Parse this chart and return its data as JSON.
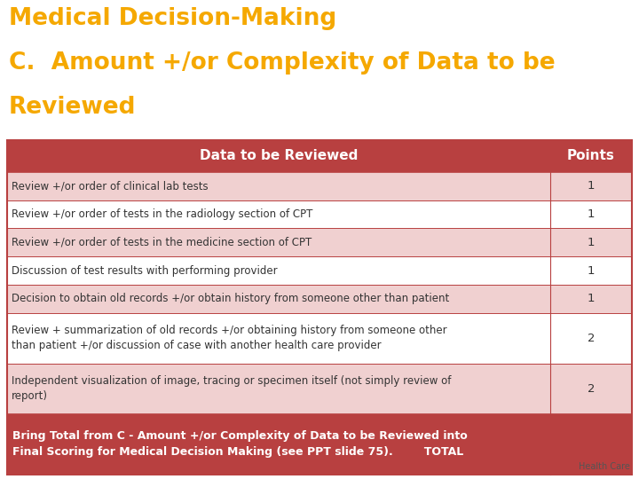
{
  "title_line1": "Medical Decision-Making",
  "title_line2": "C.  Amount +/or Complexity of Data to be",
  "title_line3": "Reviewed",
  "title_color": "#F5A800",
  "bg_color": "#FFFFFF",
  "header_bg": "#B84040",
  "header_text_color": "#FFFFFF",
  "header_col1": "Data to be Reviewed",
  "header_col2": "Points",
  "row_alt1": "#F0D0D0",
  "row_alt2": "#FFFFFF",
  "footer_bg": "#B84040",
  "footer_text_color": "#FFFFFF",
  "border_color": "#B84040",
  "rows": [
    {
      "text": "Review +/or order of clinical lab tests",
      "points": "1",
      "shade": "light"
    },
    {
      "text": "Review +/or order of tests in the radiology section of CPT",
      "points": "1",
      "shade": "white"
    },
    {
      "text": "Review +/or order of tests in the medicine section of CPT",
      "points": "1",
      "shade": "light"
    },
    {
      "text": "Discussion of test results with performing provider",
      "points": "1",
      "shade": "white"
    },
    {
      "text": "Decision to obtain old records +/or obtain history from someone other than patient",
      "points": "1",
      "shade": "light"
    },
    {
      "text": "Review + summarization of old records +/or obtaining history from someone other\nthan patient +/or discussion of case with another health care provider",
      "points": "2",
      "shade": "white"
    },
    {
      "text": "Independent visualization of image, tracing or specimen itself (not simply review of\nreport)",
      "points": "2",
      "shade": "light"
    }
  ],
  "footer_text": "Bring Total from C - Amount +/or Complexity of Data to be Reviewed into\nFinal Scoring for Medical Decision Making (see PPT slide 75).        TOTAL",
  "logo_text": "Health Care",
  "table_text_color": "#333333"
}
